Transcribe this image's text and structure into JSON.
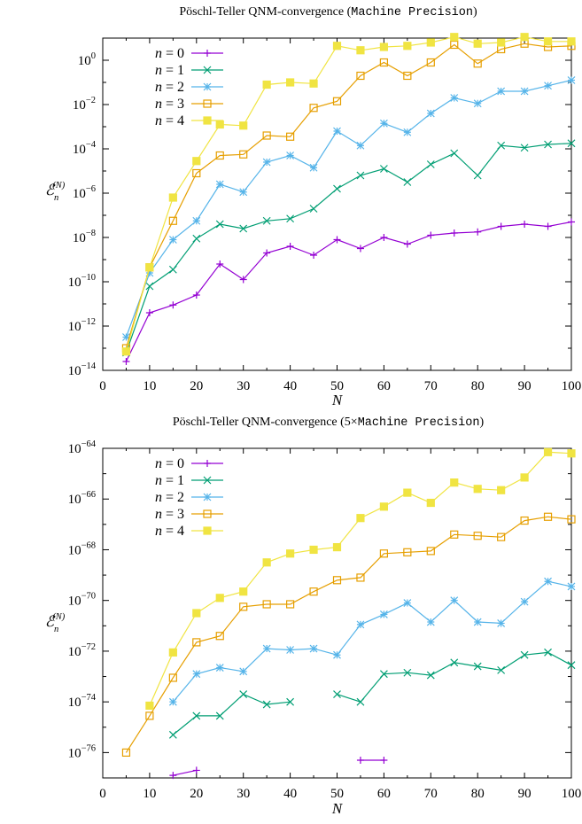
{
  "chart_data": [
    {
      "type": "line",
      "title_main": "Pöschl-Teller QNM-convergence (",
      "title_mono": "Machine Precision",
      "title_tail": ")",
      "xlabel": "N",
      "ylabel_main": "ℰ",
      "ylabel_sub": "n",
      "ylabel_sup": "(N)",
      "xlim": [
        0,
        100
      ],
      "ylim_exp": [
        -14,
        1
      ],
      "log_y": true,
      "xticks": [
        "0",
        "10",
        "20",
        "30",
        "40",
        "50",
        "60",
        "70",
        "80",
        "90",
        "100"
      ],
      "yticks_exp": [
        "-14",
        "-12",
        "-10",
        "-8",
        "-6",
        "-4",
        "-2",
        "0"
      ],
      "ytick_base": "10",
      "legend_position": "top-left",
      "series": [
        {
          "name": "n = 0",
          "name_var": "n",
          "name_val": " = 0",
          "color": "#9400d3",
          "marker": "plus",
          "points": [
            [
              5,
              -13.6
            ],
            [
              10,
              -11.4
            ],
            [
              15,
              -11.05
            ],
            [
              20,
              -10.6
            ],
            [
              25,
              -9.2
            ],
            [
              30,
              -9.9
            ],
            [
              35,
              -8.7
            ],
            [
              40,
              -8.4
            ],
            [
              45,
              -8.8
            ],
            [
              50,
              -8.1
            ],
            [
              55,
              -8.5
            ],
            [
              60,
              -8.0
            ],
            [
              65,
              -8.3
            ],
            [
              70,
              -7.9
            ],
            [
              75,
              -7.8
            ],
            [
              80,
              -7.75
            ],
            [
              85,
              -7.5
            ],
            [
              90,
              -7.4
            ],
            [
              95,
              -7.5
            ],
            [
              100,
              -7.3
            ]
          ]
        },
        {
          "name": "n = 1",
          "name_var": "n",
          "name_val": " = 1",
          "color": "#009e73",
          "marker": "cross",
          "points": [
            [
              5,
              -13.2
            ],
            [
              10,
              -10.2
            ],
            [
              15,
              -9.45
            ],
            [
              20,
              -8.05
            ],
            [
              25,
              -7.4
            ],
            [
              30,
              -7.6
            ],
            [
              35,
              -7.25
            ],
            [
              40,
              -7.15
            ],
            [
              45,
              -6.7
            ],
            [
              50,
              -5.8
            ],
            [
              55,
              -5.2
            ],
            [
              60,
              -4.9
            ],
            [
              65,
              -5.5
            ],
            [
              70,
              -4.7
            ],
            [
              75,
              -4.2
            ],
            [
              80,
              -5.2
            ],
            [
              85,
              -3.85
            ],
            [
              90,
              -3.95
            ],
            [
              95,
              -3.8
            ],
            [
              100,
              -3.75
            ]
          ]
        },
        {
          "name": "n = 2",
          "name_var": "n",
          "name_val": " = 2",
          "color": "#56b4e9",
          "marker": "star",
          "points": [
            [
              5,
              -12.5
            ],
            [
              10,
              -9.6
            ],
            [
              15,
              -8.1
            ],
            [
              20,
              -7.25
            ],
            [
              25,
              -5.6
            ],
            [
              30,
              -5.95
            ],
            [
              35,
              -4.6
            ],
            [
              40,
              -4.3
            ],
            [
              45,
              -4.85
            ],
            [
              50,
              -3.2
            ],
            [
              55,
              -3.85
            ],
            [
              60,
              -2.85
            ],
            [
              65,
              -3.25
            ],
            [
              70,
              -2.4
            ],
            [
              75,
              -1.7
            ],
            [
              80,
              -1.95
            ],
            [
              85,
              -1.4
            ],
            [
              90,
              -1.4
            ],
            [
              95,
              -1.15
            ],
            [
              100,
              -0.9
            ]
          ]
        },
        {
          "name": "n = 3",
          "name_var": "n",
          "name_val": " = 3",
          "color": "#e69f00",
          "marker": "square",
          "points": [
            [
              5,
              -13.0
            ],
            [
              10,
              -9.35
            ],
            [
              15,
              -7.25
            ],
            [
              20,
              -5.1
            ],
            [
              25,
              -4.3
            ],
            [
              30,
              -4.25
            ],
            [
              35,
              -3.4
            ],
            [
              40,
              -3.45
            ],
            [
              45,
              -2.15
            ],
            [
              50,
              -1.85
            ],
            [
              55,
              -0.7
            ],
            [
              60,
              -0.1
            ],
            [
              65,
              -0.7
            ],
            [
              70,
              -0.1
            ],
            [
              75,
              0.7
            ],
            [
              80,
              -0.15
            ],
            [
              85,
              0.5
            ],
            [
              90,
              0.75
            ],
            [
              95,
              0.6
            ],
            [
              100,
              0.65
            ]
          ]
        },
        {
          "name": "n = 4",
          "name_var": "n",
          "name_val": " = 4",
          "color": "#f0e442",
          "marker": "filled-square",
          "points": [
            [
              5,
              -13.15
            ],
            [
              10,
              -9.35
            ],
            [
              15,
              -6.2
            ],
            [
              20,
              -4.55
            ],
            [
              25,
              -2.9
            ],
            [
              30,
              -2.95
            ],
            [
              35,
              -1.1
            ],
            [
              40,
              -1.0
            ],
            [
              45,
              -1.05
            ],
            [
              50,
              0.65
            ],
            [
              55,
              0.45
            ],
            [
              60,
              0.6
            ],
            [
              65,
              0.65
            ],
            [
              70,
              0.8
            ],
            [
              75,
              1.05
            ],
            [
              80,
              0.75
            ],
            [
              85,
              0.8
            ],
            [
              90,
              1.05
            ],
            [
              95,
              0.85
            ],
            [
              100,
              0.85
            ]
          ]
        }
      ]
    },
    {
      "type": "line",
      "title_main": "Pöschl-Teller QNM-convergence (5×",
      "title_mono": "Machine Precision",
      "title_tail": ")",
      "xlabel": "N",
      "ylabel_main": "ℰ",
      "ylabel_sub": "n",
      "ylabel_sup": "(N)",
      "xlim": [
        0,
        100
      ],
      "ylim_exp": [
        -77,
        -64
      ],
      "log_y": true,
      "xticks": [
        "0",
        "10",
        "20",
        "30",
        "40",
        "50",
        "60",
        "70",
        "80",
        "90",
        "100"
      ],
      "yticks_exp": [
        "-76",
        "-74",
        "-72",
        "-70",
        "-68",
        "-66",
        "-64"
      ],
      "ytick_base": "10",
      "legend_position": "top-left",
      "series": [
        {
          "name": "n = 0",
          "name_var": "n",
          "name_val": " = 0",
          "color": "#9400d3",
          "marker": "plus",
          "segments": [
            [
              [
                15,
                -76.9
              ],
              [
                20,
                -76.7
              ]
            ],
            [
              [
                55,
                -76.3
              ],
              [
                60,
                -76.3
              ]
            ]
          ]
        },
        {
          "name": "n = 1",
          "name_var": "n",
          "name_val": " = 1",
          "color": "#009e73",
          "marker": "cross",
          "segments": [
            [
              [
                15,
                -75.3
              ],
              [
                20,
                -74.55
              ],
              [
                25,
                -74.55
              ],
              [
                30,
                -73.7
              ],
              [
                35,
                -74.1
              ],
              [
                40,
                -74.0
              ]
            ],
            [
              [
                50,
                -73.7
              ],
              [
                55,
                -74.0
              ],
              [
                60,
                -72.9
              ],
              [
                65,
                -72.85
              ],
              [
                70,
                -72.95
              ],
              [
                75,
                -72.45
              ],
              [
                80,
                -72.6
              ],
              [
                85,
                -72.75
              ],
              [
                90,
                -72.15
              ],
              [
                95,
                -72.05
              ],
              [
                100,
                -72.55
              ]
            ]
          ]
        },
        {
          "name": "n = 2",
          "name_var": "n",
          "name_val": " = 2",
          "color": "#56b4e9",
          "marker": "star",
          "points": [
            [
              15,
              -74.0
            ],
            [
              20,
              -72.9
            ],
            [
              25,
              -72.65
            ],
            [
              30,
              -72.8
            ],
            [
              35,
              -71.9
            ],
            [
              40,
              -71.95
            ],
            [
              45,
              -71.9
            ],
            [
              50,
              -72.15
            ],
            [
              55,
              -70.95
            ],
            [
              60,
              -70.55
            ],
            [
              65,
              -70.1
            ],
            [
              70,
              -70.85
            ],
            [
              75,
              -70.0
            ],
            [
              80,
              -70.85
            ],
            [
              85,
              -70.9
            ],
            [
              90,
              -70.05
            ],
            [
              95,
              -69.25
            ],
            [
              100,
              -69.45
            ]
          ]
        },
        {
          "name": "n = 3",
          "name_var": "n",
          "name_val": " = 3",
          "color": "#e69f00",
          "marker": "square",
          "points": [
            [
              5,
              -76.0
            ],
            [
              10,
              -74.55
            ],
            [
              15,
              -73.05
            ],
            [
              20,
              -71.65
            ],
            [
              25,
              -71.4
            ],
            [
              30,
              -70.25
            ],
            [
              35,
              -70.15
            ],
            [
              40,
              -70.15
            ],
            [
              45,
              -69.65
            ],
            [
              50,
              -69.2
            ],
            [
              55,
              -69.1
            ],
            [
              60,
              -68.15
            ],
            [
              65,
              -68.1
            ],
            [
              70,
              -68.05
            ],
            [
              75,
              -67.4
            ],
            [
              80,
              -67.45
            ],
            [
              85,
              -67.5
            ],
            [
              90,
              -66.85
            ],
            [
              95,
              -66.7
            ],
            [
              100,
              -66.8
            ]
          ]
        },
        {
          "name": "n = 4",
          "name_var": "n",
          "name_val": " = 4",
          "color": "#f0e442",
          "marker": "filled-square",
          "points": [
            [
              10,
              -74.15
            ],
            [
              15,
              -72.05
            ],
            [
              20,
              -70.5
            ],
            [
              25,
              -69.9
            ],
            [
              30,
              -69.65
            ],
            [
              35,
              -68.5
            ],
            [
              40,
              -68.15
            ],
            [
              45,
              -68.0
            ],
            [
              50,
              -67.9
            ],
            [
              55,
              -66.75
            ],
            [
              60,
              -66.3
            ],
            [
              65,
              -65.75
            ],
            [
              70,
              -66.15
            ],
            [
              75,
              -65.35
            ],
            [
              80,
              -65.6
            ],
            [
              85,
              -65.65
            ],
            [
              90,
              -65.15
            ],
            [
              95,
              -64.15
            ],
            [
              100,
              -64.2
            ]
          ]
        }
      ]
    }
  ]
}
